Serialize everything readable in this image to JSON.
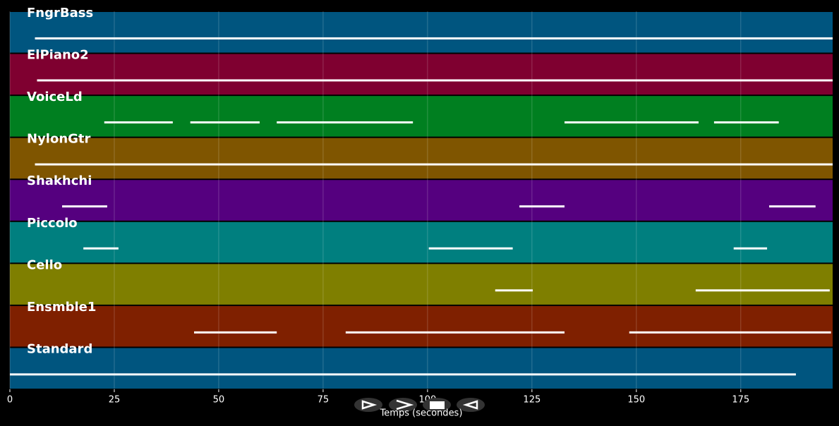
{
  "chart_data": {
    "type": "timeline",
    "xlabel": "Temps (secondes)",
    "xlim": [
      0,
      197
    ],
    "xticks": [
      0,
      25,
      50,
      75,
      100,
      125,
      150,
      175
    ],
    "grid": true,
    "series": [
      {
        "name": "FngrBass",
        "color": "#00557f",
        "segments": [
          [
            6,
            197
          ]
        ]
      },
      {
        "name": "ElPiano2",
        "color": "#7f0030",
        "segments": [
          [
            6.5,
            197
          ]
        ]
      },
      {
        "name": "VoiceLd",
        "color": "#007f20",
        "segments": [
          [
            22.6,
            39
          ],
          [
            43.2,
            59.8
          ],
          [
            63.9,
            96.5
          ],
          [
            132.8,
            164.9
          ],
          [
            168.6,
            184.1
          ]
        ]
      },
      {
        "name": "NylonGtr",
        "color": "#7f5500",
        "segments": [
          [
            6,
            197
          ]
        ]
      },
      {
        "name": "Shakhchi",
        "color": "#55007f",
        "segments": [
          [
            12.5,
            23.3
          ],
          [
            122,
            132.8
          ],
          [
            181.8,
            192.9
          ]
        ]
      },
      {
        "name": "Piccolo",
        "color": "#007f7f",
        "segments": [
          [
            17.6,
            26
          ],
          [
            100.3,
            120.4
          ],
          [
            173.3,
            181.3
          ]
        ]
      },
      {
        "name": "Cello",
        "color": "#7f7f00",
        "segments": [
          [
            116.2,
            125.2
          ],
          [
            164.2,
            196.3
          ]
        ]
      },
      {
        "name": "Ensmble1",
        "color": "#7f2000",
        "segments": [
          [
            44.1,
            63.9
          ],
          [
            80.4,
            132.8
          ],
          [
            148.3,
            196.6
          ]
        ]
      },
      {
        "name": "Standard",
        "color": "#00557f",
        "segments": [
          [
            0,
            188.2
          ]
        ]
      }
    ]
  }
}
